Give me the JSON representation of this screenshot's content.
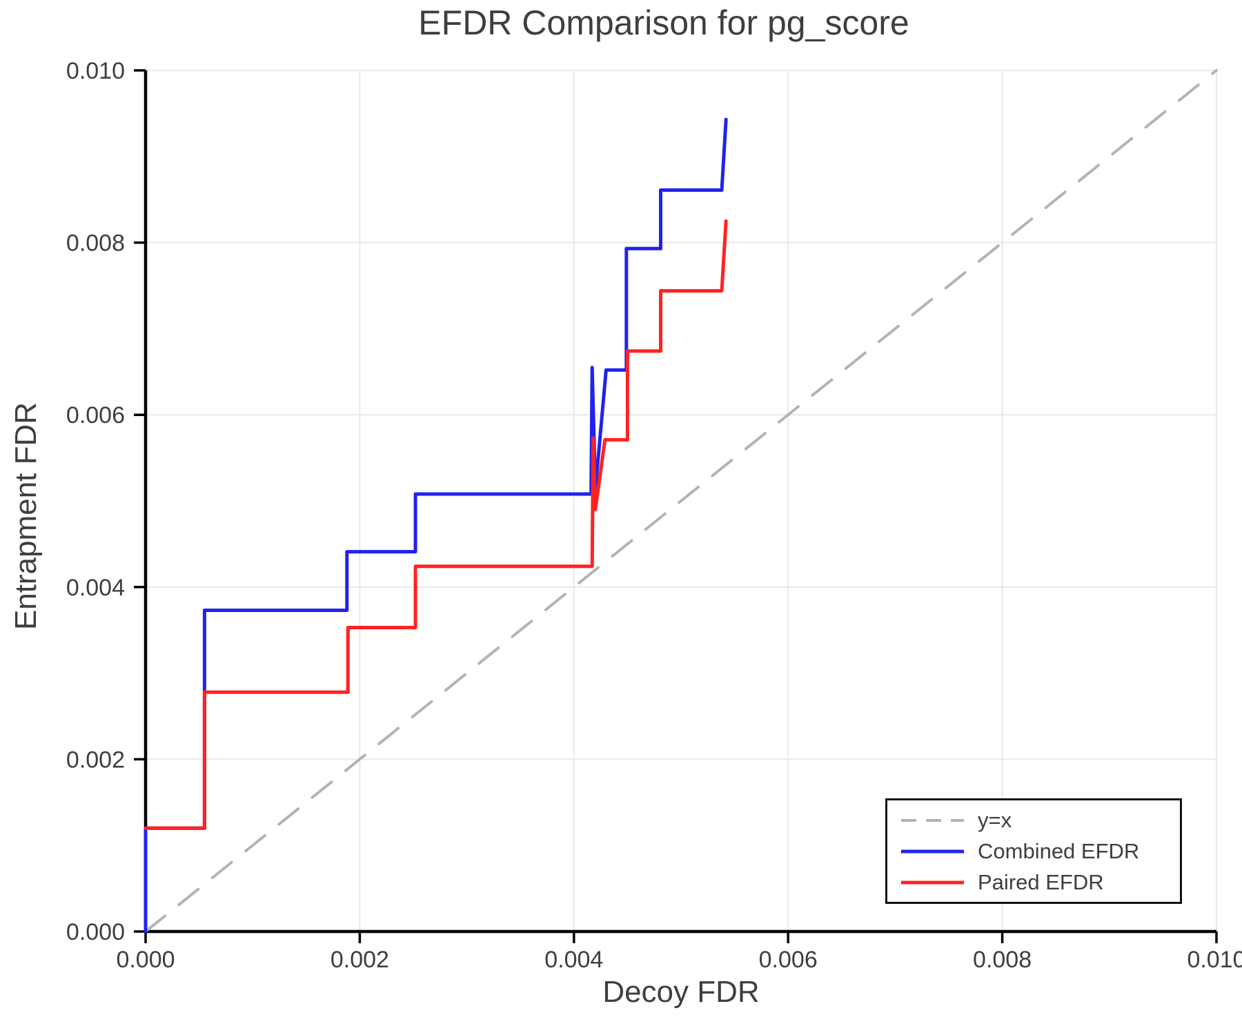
{
  "chart_data": {
    "type": "line",
    "title": "EFDR Comparison for pg_score",
    "xlabel": "Decoy FDR",
    "ylabel": "Entrapment FDR",
    "xlim": [
      0.0,
      0.01
    ],
    "ylim": [
      0.0,
      0.01
    ],
    "grid": true,
    "legend_position": "lower right",
    "x_tick_values": [
      0.0,
      0.002,
      0.004,
      0.006,
      0.008,
      0.01
    ],
    "x_tick_labels": [
      "0.000",
      "0.002",
      "0.004",
      "0.006",
      "0.008",
      "0.010"
    ],
    "y_tick_values": [
      0.0,
      0.002,
      0.004,
      0.006,
      0.008,
      0.01
    ],
    "y_tick_labels": [
      "0.000",
      "0.002",
      "0.004",
      "0.006",
      "0.008",
      "0.010"
    ],
    "colors": {
      "reference": "#b3b3b3",
      "combined": "#2222ee",
      "paired": "#ff2222",
      "grid": "#e9e9e9",
      "axis": "#000000",
      "text": "#3e3e3e"
    },
    "series": [
      {
        "name": "y=x",
        "style": "dashed",
        "color": "#b3b3b3",
        "points": [
          [
            0.0,
            0.0
          ],
          [
            0.01,
            0.01
          ]
        ]
      },
      {
        "name": "Combined EFDR",
        "style": "solid",
        "color": "#2222ee",
        "points": [
          [
            0.0,
            0.0
          ],
          [
            0.0,
            0.0012
          ],
          [
            0.00055,
            0.0012
          ],
          [
            0.00055,
            0.00373
          ],
          [
            0.00188,
            0.00373
          ],
          [
            0.00188,
            0.00441
          ],
          [
            0.00252,
            0.00441
          ],
          [
            0.00252,
            0.00508
          ],
          [
            0.00416,
            0.00508
          ],
          [
            0.00417,
            0.00655
          ],
          [
            0.0042,
            0.00513
          ],
          [
            0.0043,
            0.00652
          ],
          [
            0.00449,
            0.00652
          ],
          [
            0.00449,
            0.00793
          ],
          [
            0.00481,
            0.00793
          ],
          [
            0.00481,
            0.00861
          ],
          [
            0.00538,
            0.00861
          ],
          [
            0.00542,
            0.00943
          ]
        ]
      },
      {
        "name": "Paired EFDR",
        "style": "solid",
        "color": "#ff2222",
        "points": [
          [
            0.0,
            0.0012
          ],
          [
            0.00055,
            0.0012
          ],
          [
            0.00055,
            0.00278
          ],
          [
            0.00189,
            0.00278
          ],
          [
            0.00189,
            0.00353
          ],
          [
            0.00252,
            0.00353
          ],
          [
            0.00252,
            0.00424
          ],
          [
            0.00417,
            0.00424
          ],
          [
            0.00418,
            0.00573
          ],
          [
            0.0042,
            0.0049
          ],
          [
            0.00429,
            0.00571
          ],
          [
            0.0045,
            0.00571
          ],
          [
            0.0045,
            0.00674
          ],
          [
            0.00481,
            0.00674
          ],
          [
            0.00481,
            0.00744
          ],
          [
            0.00538,
            0.00744
          ],
          [
            0.00542,
            0.00825
          ]
        ]
      }
    ]
  }
}
